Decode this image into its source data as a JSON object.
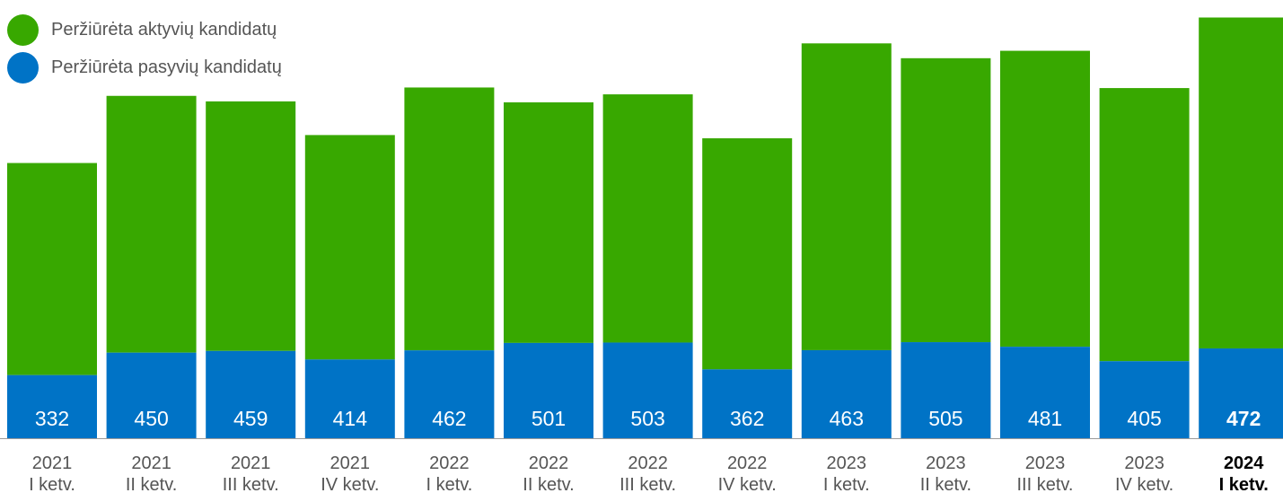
{
  "chart_data": {
    "type": "bar",
    "stacked": true,
    "categories": [
      [
        "2021",
        "I ketv."
      ],
      [
        "2021",
        "II ketv."
      ],
      [
        "2021",
        "III ketv."
      ],
      [
        "2021",
        "IV ketv."
      ],
      [
        "2022",
        "I ketv."
      ],
      [
        "2022",
        "II ketv."
      ],
      [
        "2022",
        "III ketv."
      ],
      [
        "2022",
        "IV ketv."
      ],
      [
        "2023",
        "I ketv."
      ],
      [
        "2023",
        "II ketv."
      ],
      [
        "2023",
        "III ketv."
      ],
      [
        "2023",
        "IV ketv."
      ],
      [
        "2024",
        "I ketv."
      ]
    ],
    "highlight_index": 12,
    "series": [
      {
        "name": "Peržiūrėta pasyvių kandidatų",
        "color": "#0073c6",
        "values": [
          332,
          450,
          459,
          414,
          462,
          501,
          503,
          362,
          463,
          505,
          481,
          405,
          472
        ],
        "show_labels": true
      },
      {
        "name": "Peržiūrėta aktyvių kandidatų",
        "color": "#38a800",
        "values": [
          1115,
          1350,
          1312,
          1180,
          1382,
          1265,
          1305,
          1215,
          1613,
          1493,
          1556,
          1436,
          1740
        ],
        "show_labels": false
      }
    ],
    "legend": {
      "position": "top-left"
    },
    "grid": false,
    "y_axis_visible": false
  }
}
